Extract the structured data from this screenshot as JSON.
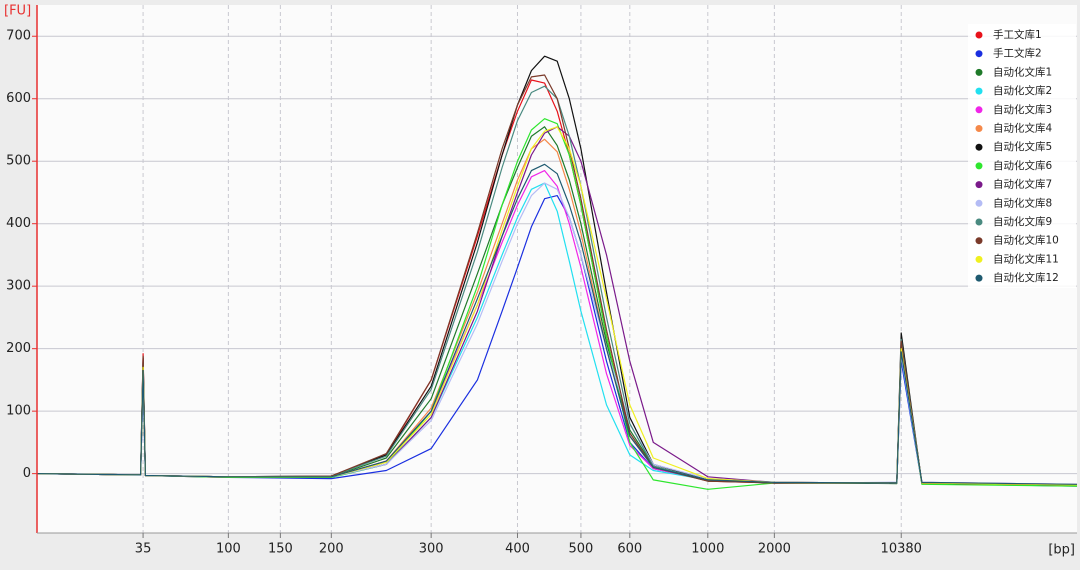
{
  "chart_data": {
    "type": "line",
    "y_label": "[FU]",
    "x_label": "[bp]",
    "x": [
      10,
      34,
      35,
      36,
      100,
      200,
      250,
      300,
      350,
      380,
      400,
      420,
      440,
      460,
      480,
      500,
      550,
      600,
      700,
      1000,
      2000,
      9800,
      10380,
      11000,
      17000
    ],
    "xlim": [
      10,
      17000
    ],
    "xticks": [
      35,
      100,
      150,
      200,
      300,
      400,
      500,
      600,
      1000,
      2000,
      10380
    ],
    "ylim": [
      -95,
      750
    ],
    "yticks": [
      0,
      100,
      200,
      300,
      400,
      500,
      600,
      700
    ],
    "grid": true,
    "legend": "upper right",
    "series": [
      {
        "name": "手工文库1",
        "color": "#e8121a",
        "values": [
          0,
          -2,
          192,
          -3,
          -6,
          -4,
          30,
          150,
          380,
          510,
          580,
          630,
          625,
          580,
          510,
          430,
          220,
          60,
          10,
          -12,
          -15,
          -15,
          210,
          -15,
          -18
        ]
      },
      {
        "name": "手工文库2",
        "color": "#1a2fe0",
        "values": [
          0,
          -2,
          150,
          -3,
          -6,
          -8,
          5,
          40,
          150,
          260,
          330,
          395,
          440,
          445,
          410,
          350,
          180,
          50,
          8,
          -10,
          -15,
          -14,
          180,
          -16,
          -20
        ]
      },
      {
        "name": "自动化文库1",
        "color": "#1f7a2a",
        "values": [
          0,
          -2,
          170,
          -3,
          -5,
          -5,
          25,
          120,
          320,
          430,
          490,
          540,
          555,
          525,
          470,
          400,
          210,
          70,
          12,
          -12,
          -14,
          -16,
          200,
          -15,
          -18
        ]
      },
      {
        "name": "自动化文库2",
        "color": "#22e0f0",
        "values": [
          0,
          -2,
          160,
          -3,
          -5,
          -6,
          15,
          90,
          250,
          350,
          410,
          455,
          465,
          420,
          340,
          260,
          110,
          30,
          5,
          -10,
          -14,
          -15,
          190,
          -16,
          -18
        ]
      },
      {
        "name": "自动化文库3",
        "color": "#f026e8",
        "values": [
          0,
          -2,
          165,
          -3,
          -5,
          -5,
          20,
          100,
          270,
          370,
          430,
          475,
          485,
          460,
          400,
          330,
          160,
          45,
          8,
          -10,
          -14,
          -15,
          195,
          -14,
          -17
        ]
      },
      {
        "name": "自动化文库4",
        "color": "#f5894a",
        "values": [
          0,
          -2,
          170,
          -3,
          -5,
          -5,
          20,
          105,
          290,
          400,
          470,
          520,
          535,
          515,
          455,
          385,
          200,
          60,
          10,
          -11,
          -14,
          -15,
          200,
          -15,
          -18
        ]
      },
      {
        "name": "自动化文库5",
        "color": "#111111",
        "values": [
          0,
          -2,
          185,
          -3,
          -5,
          -4,
          30,
          140,
          370,
          510,
          590,
          645,
          668,
          660,
          600,
          520,
          290,
          90,
          15,
          -10,
          -15,
          -15,
          225,
          -16,
          -18
        ]
      },
      {
        "name": "自动化文库6",
        "color": "#2ee62e",
        "values": [
          0,
          -2,
          175,
          -3,
          -6,
          -6,
          15,
          100,
          300,
          430,
          500,
          550,
          568,
          560,
          510,
          430,
          220,
          50,
          -10,
          -25,
          -15,
          -15,
          205,
          -17,
          -20
        ]
      },
      {
        "name": "自动化文库7",
        "color": "#7a1a8a",
        "values": [
          0,
          -2,
          170,
          -3,
          -5,
          -5,
          15,
          90,
          260,
          380,
          450,
          510,
          545,
          555,
          540,
          500,
          350,
          180,
          50,
          -5,
          -14,
          -15,
          200,
          -15,
          -18
        ]
      },
      {
        "name": "自动化文库8",
        "color": "#b4bcf5",
        "values": [
          0,
          -2,
          160,
          -3,
          -5,
          -5,
          15,
          85,
          240,
          340,
          400,
          445,
          465,
          455,
          410,
          350,
          200,
          80,
          15,
          -8,
          -14,
          -15,
          190,
          -14,
          -17
        ]
      },
      {
        "name": "自动化文库9",
        "color": "#4a8a80",
        "values": [
          0,
          -2,
          180,
          -3,
          -5,
          -4,
          28,
          135,
          355,
          490,
          565,
          610,
          620,
          600,
          540,
          460,
          250,
          80,
          12,
          -10,
          -15,
          -15,
          215,
          -15,
          -18
        ]
      },
      {
        "name": "自动化文库10",
        "color": "#7a3a2a",
        "values": [
          0,
          -2,
          188,
          -3,
          -5,
          -4,
          32,
          150,
          385,
          520,
          590,
          635,
          638,
          600,
          520,
          440,
          230,
          65,
          10,
          -12,
          -15,
          -15,
          212,
          -15,
          -18
        ]
      },
      {
        "name": "自动化文库11",
        "color": "#f0f020",
        "values": [
          0,
          -2,
          170,
          -3,
          -5,
          -5,
          18,
          95,
          270,
          390,
          460,
          520,
          548,
          555,
          520,
          460,
          280,
          110,
          25,
          -8,
          -14,
          -15,
          200,
          -15,
          -18
        ]
      },
      {
        "name": "自动化文库12",
        "color": "#1f5a70",
        "values": [
          0,
          -2,
          165,
          -3,
          -5,
          -5,
          20,
          100,
          280,
          380,
          440,
          485,
          495,
          480,
          430,
          370,
          200,
          60,
          10,
          -10,
          -14,
          -15,
          195,
          -14,
          -17
        ]
      }
    ]
  }
}
